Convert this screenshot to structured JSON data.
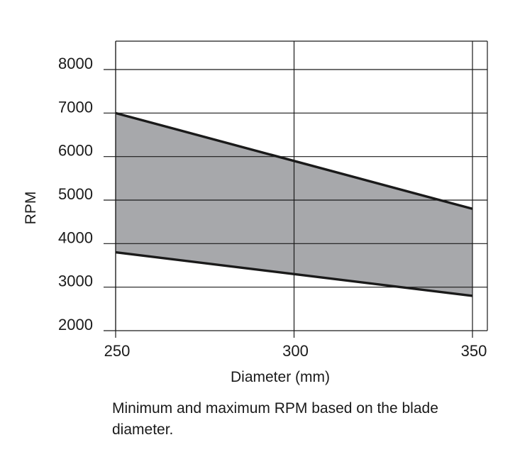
{
  "chart_data": {
    "type": "area",
    "title": "",
    "xlabel": "Diameter (mm)",
    "ylabel": "RPM",
    "xlim": [
      250,
      350
    ],
    "ylim": [
      2000,
      8000
    ],
    "x_ticks": [
      250,
      300,
      350
    ],
    "y_ticks": [
      2000,
      3000,
      4000,
      5000,
      6000,
      7000,
      8000
    ],
    "grid": true,
    "series": [
      {
        "x": [
          250,
          350
        ],
        "values": [
          7000,
          4800
        ]
      },
      {
        "x": [
          250,
          350
        ],
        "values": [
          3800,
          2800
        ]
      }
    ],
    "band_fill": "#a7a8ab",
    "line_color": "#1a1a1a",
    "grid_color": "#1a1a1a"
  },
  "caption": "Minimum and maximum RPM based on the blade diameter."
}
